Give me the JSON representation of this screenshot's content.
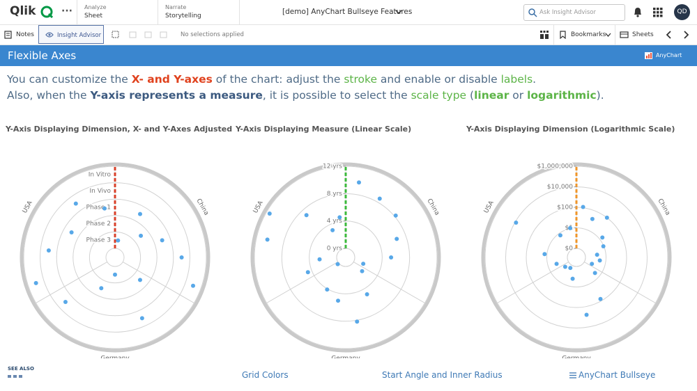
{
  "topbar": {
    "logo": "Qlik",
    "analyze": {
      "label": "Analyze",
      "value": "Sheet"
    },
    "narrate": {
      "label": "Narrate",
      "value": "Storytelling"
    },
    "app_title": "[demo] AnyChart Bullseye Features",
    "search_placeholder": "Ask Insight Advisor",
    "avatar": "QD"
  },
  "toolbar": {
    "notes": "Notes",
    "insight": "Insight Advisor",
    "selections": "No selections applied",
    "bookmarks": "Bookmarks",
    "sheets": "Sheets"
  },
  "header": {
    "title": "Flexible Axes",
    "brand": "AnyChart"
  },
  "intro": [
    [
      {
        "text": "You can customize the ",
        "style": "plain"
      },
      {
        "text": "X- and Y-axes",
        "style": "red"
      },
      {
        "text": " of the chart: adjust the ",
        "style": "plain"
      },
      {
        "text": "stroke",
        "style": "green"
      },
      {
        "text": " and enable or disable ",
        "style": "plain"
      },
      {
        "text": "labels",
        "style": "green"
      },
      {
        "text": ".",
        "style": "plain"
      }
    ],
    [
      {
        "text": "Also, when the ",
        "style": "plain"
      },
      {
        "text": "Y-axis represents a measure",
        "style": "strong"
      },
      {
        "text": ", it is possible to select the ",
        "style": "plain"
      },
      {
        "text": "scale type",
        "style": "green"
      },
      {
        "text": " (",
        "style": "plain"
      },
      {
        "text": "linear",
        "style": "green-strong"
      },
      {
        "text": " or ",
        "style": "plain"
      },
      {
        "text": "logarithmic",
        "style": "green-strong"
      },
      {
        "text": ").",
        "style": "plain"
      }
    ]
  ],
  "charts": [
    {
      "title": "Y-Axis Displaying Dimension, X- and Y-Axes Adjusted",
      "scale": "category",
      "axis_color": "#d9412a",
      "point_color": "#58a8e8",
      "sectors": [
        "China",
        "Germany",
        "USA"
      ],
      "rings": [
        "Phase 3",
        "Phase 2",
        "Phase 1",
        "In Vivo",
        "In Vitro"
      ],
      "points": [
        {
          "sector": "USA",
          "value": "In Vitro"
        },
        {
          "sector": "USA",
          "value": "In Vivo"
        },
        {
          "sector": "USA",
          "value": "Phase 1"
        },
        {
          "sector": "USA",
          "value": "In Vivo"
        },
        {
          "sector": "USA",
          "value": "Phase 1"
        },
        {
          "sector": "China",
          "value": "Phase 3"
        },
        {
          "sector": "China",
          "value": "Phase 1"
        },
        {
          "sector": "China",
          "value": "Phase 2"
        },
        {
          "sector": "China",
          "value": "Phase 1"
        },
        {
          "sector": "China",
          "value": "In Vivo"
        },
        {
          "sector": "China",
          "value": "In Vitro"
        },
        {
          "sector": "Germany",
          "value": "Phase 2"
        },
        {
          "sector": "Germany",
          "value": "In Vivo"
        },
        {
          "sector": "Germany",
          "value": "Phase 3"
        },
        {
          "sector": "Germany",
          "value": "Phase 2"
        },
        {
          "sector": "Germany",
          "value": "In Vivo"
        }
      ]
    },
    {
      "title": "Y-Axis Displaying Measure (Linear Scale)",
      "scale": "linear",
      "axis_color": "#3cba3c",
      "point_color": "#58a8e8",
      "sectors": [
        "China",
        "Germany",
        "USA"
      ],
      "ylim": [
        0,
        12
      ],
      "yticks": [
        {
          "value": 0,
          "label": "0 yrs"
        },
        {
          "value": 4,
          "label": "4 yrs"
        },
        {
          "value": 8,
          "label": "8 yrs"
        },
        {
          "value": 12,
          "label": "12 yrs"
        }
      ],
      "points": [
        {
          "sector": "China",
          "value": 9.8
        },
        {
          "sector": "China",
          "value": 8.6
        },
        {
          "sector": "China",
          "value": 8.2
        },
        {
          "sector": "China",
          "value": 6.6
        },
        {
          "sector": "China",
          "value": 5.3
        },
        {
          "sector": "China",
          "value": 1.4
        },
        {
          "sector": "Germany",
          "value": 1.8
        },
        {
          "sector": "Germany",
          "value": 4.9
        },
        {
          "sector": "Germany",
          "value": 8.2
        },
        {
          "sector": "Germany",
          "value": 5.1
        },
        {
          "sector": "Germany",
          "value": 4.1
        },
        {
          "sector": "Germany",
          "value": 0.2
        },
        {
          "sector": "USA",
          "value": 4.6
        },
        {
          "sector": "USA",
          "value": 2.5
        },
        {
          "sector": "USA",
          "value": 10.4
        },
        {
          "sector": "USA",
          "value": 11.5
        },
        {
          "sector": "USA",
          "value": 7.1
        },
        {
          "sector": "USA",
          "value": 3.1
        },
        {
          "sector": "USA",
          "value": 4.6
        }
      ]
    },
    {
      "title": "Y-Axis Displaying Dimension (Logarithmic Scale)",
      "scale": "log",
      "axis_color": "#f0962a",
      "point_color": "#58a8e8",
      "sectors": [
        "China",
        "Germany",
        "USA"
      ],
      "ylim": [
        0.01,
        1000000
      ],
      "yticks": [
        {
          "value": 0.01,
          "label": "$0"
        },
        {
          "value": 1,
          "label": "$1"
        },
        {
          "value": 100,
          "label": "$100"
        },
        {
          "value": 10000,
          "label": "$10,000"
        },
        {
          "value": 1000000,
          "label": "$1,000,000"
        }
      ],
      "points": [
        {
          "sector": "China",
          "value": 120
        },
        {
          "sector": "China",
          "value": 15
        },
        {
          "sector": "China",
          "value": 100
        },
        {
          "sector": "China",
          "value": 2
        },
        {
          "sector": "China",
          "value": 0.9
        },
        {
          "sector": "China",
          "value": 0.14
        },
        {
          "sector": "China",
          "value": 0.26
        },
        {
          "sector": "China",
          "value": 0.056
        },
        {
          "sector": "Germany",
          "value": 0.3
        },
        {
          "sector": "Germany",
          "value": 63
        },
        {
          "sector": "Germany",
          "value": 630
        },
        {
          "sector": "Germany",
          "value": 0.17
        },
        {
          "sector": "Germany",
          "value": 0.02
        },
        {
          "sector": "Germany",
          "value": 0.035
        },
        {
          "sector": "USA",
          "value": 0.14
        },
        {
          "sector": "USA",
          "value": 1.7
        },
        {
          "sector": "USA",
          "value": 8000
        },
        {
          "sector": "USA",
          "value": 0.6
        },
        {
          "sector": "USA",
          "value": 1.1
        }
      ]
    }
  ],
  "footer": {
    "see_also": "SEE ALSO",
    "links": [
      "Grid Colors",
      "Start Angle and Inner Radius",
      "AnyChart Bullseye"
    ]
  }
}
